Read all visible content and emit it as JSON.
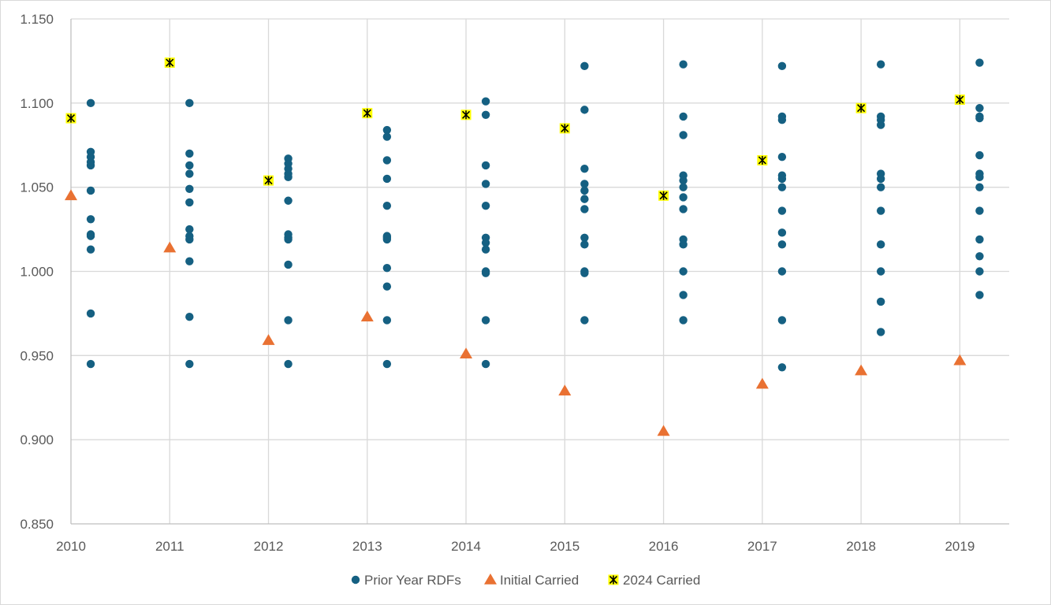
{
  "chart_data": {
    "type": "scatter",
    "title": "",
    "xlabel": "",
    "ylabel": "",
    "xlim": [
      2010,
      2019.5
    ],
    "ylim": [
      0.85,
      1.15
    ],
    "x_ticks": [
      "2010",
      "2011",
      "2012",
      "2013",
      "2014",
      "2015",
      "2016",
      "2017",
      "2018",
      "2019"
    ],
    "y_ticks": [
      "0.850",
      "0.900",
      "0.950",
      "1.000",
      "1.050",
      "1.100",
      "1.150"
    ],
    "grid": "vertical and horizontal major gridlines",
    "legend_position": "bottom",
    "series": [
      {
        "name": "Prior Year RDFs",
        "marker": "circle",
        "color": "#156082",
        "points": [
          {
            "x": 2010.2,
            "y": 1.1
          },
          {
            "x": 2010.2,
            "y": 1.071
          },
          {
            "x": 2010.2,
            "y": 1.068
          },
          {
            "x": 2010.2,
            "y": 1.065
          },
          {
            "x": 2010.2,
            "y": 1.063
          },
          {
            "x": 2010.2,
            "y": 1.048
          },
          {
            "x": 2010.2,
            "y": 1.031
          },
          {
            "x": 2010.2,
            "y": 1.022
          },
          {
            "x": 2010.2,
            "y": 1.021
          },
          {
            "x": 2010.2,
            "y": 1.013
          },
          {
            "x": 2010.2,
            "y": 0.975
          },
          {
            "x": 2010.2,
            "y": 0.945
          },
          {
            "x": 2011.2,
            "y": 1.1
          },
          {
            "x": 2011.2,
            "y": 1.07
          },
          {
            "x": 2011.2,
            "y": 1.063
          },
          {
            "x": 2011.2,
            "y": 1.058
          },
          {
            "x": 2011.2,
            "y": 1.049
          },
          {
            "x": 2011.2,
            "y": 1.041
          },
          {
            "x": 2011.2,
            "y": 1.025
          },
          {
            "x": 2011.2,
            "y": 1.021
          },
          {
            "x": 2011.2,
            "y": 1.019
          },
          {
            "x": 2011.2,
            "y": 1.006
          },
          {
            "x": 2011.2,
            "y": 0.973
          },
          {
            "x": 2011.2,
            "y": 0.945
          },
          {
            "x": 2012.2,
            "y": 1.067
          },
          {
            "x": 2012.2,
            "y": 1.064
          },
          {
            "x": 2012.2,
            "y": 1.061
          },
          {
            "x": 2012.2,
            "y": 1.058
          },
          {
            "x": 2012.2,
            "y": 1.056
          },
          {
            "x": 2012.2,
            "y": 1.042
          },
          {
            "x": 2012.2,
            "y": 1.022
          },
          {
            "x": 2012.2,
            "y": 1.02
          },
          {
            "x": 2012.2,
            "y": 1.019
          },
          {
            "x": 2012.2,
            "y": 1.004
          },
          {
            "x": 2012.2,
            "y": 0.971
          },
          {
            "x": 2012.2,
            "y": 0.945
          },
          {
            "x": 2013.2,
            "y": 1.084
          },
          {
            "x": 2013.2,
            "y": 1.08
          },
          {
            "x": 2013.2,
            "y": 1.066
          },
          {
            "x": 2013.2,
            "y": 1.055
          },
          {
            "x": 2013.2,
            "y": 1.039
          },
          {
            "x": 2013.2,
            "y": 1.021
          },
          {
            "x": 2013.2,
            "y": 1.02
          },
          {
            "x": 2013.2,
            "y": 1.019
          },
          {
            "x": 2013.2,
            "y": 1.002
          },
          {
            "x": 2013.2,
            "y": 0.991
          },
          {
            "x": 2013.2,
            "y": 0.971
          },
          {
            "x": 2013.2,
            "y": 0.945
          },
          {
            "x": 2014.2,
            "y": 1.101
          },
          {
            "x": 2014.2,
            "y": 1.093
          },
          {
            "x": 2014.2,
            "y": 1.063
          },
          {
            "x": 2014.2,
            "y": 1.052
          },
          {
            "x": 2014.2,
            "y": 1.039
          },
          {
            "x": 2014.2,
            "y": 1.02
          },
          {
            "x": 2014.2,
            "y": 1.017
          },
          {
            "x": 2014.2,
            "y": 1.013
          },
          {
            "x": 2014.2,
            "y": 1.0
          },
          {
            "x": 2014.2,
            "y": 0.999
          },
          {
            "x": 2014.2,
            "y": 0.971
          },
          {
            "x": 2014.2,
            "y": 0.945
          },
          {
            "x": 2015.2,
            "y": 1.122
          },
          {
            "x": 2015.2,
            "y": 1.096
          },
          {
            "x": 2015.2,
            "y": 1.061
          },
          {
            "x": 2015.2,
            "y": 1.052
          },
          {
            "x": 2015.2,
            "y": 1.048
          },
          {
            "x": 2015.2,
            "y": 1.043
          },
          {
            "x": 2015.2,
            "y": 1.037
          },
          {
            "x": 2015.2,
            "y": 1.02
          },
          {
            "x": 2015.2,
            "y": 1.016
          },
          {
            "x": 2015.2,
            "y": 1.0
          },
          {
            "x": 2015.2,
            "y": 0.999
          },
          {
            "x": 2015.2,
            "y": 0.971
          },
          {
            "x": 2016.2,
            "y": 1.123
          },
          {
            "x": 2016.2,
            "y": 1.092
          },
          {
            "x": 2016.2,
            "y": 1.081
          },
          {
            "x": 2016.2,
            "y": 1.057
          },
          {
            "x": 2016.2,
            "y": 1.054
          },
          {
            "x": 2016.2,
            "y": 1.05
          },
          {
            "x": 2016.2,
            "y": 1.044
          },
          {
            "x": 2016.2,
            "y": 1.037
          },
          {
            "x": 2016.2,
            "y": 1.019
          },
          {
            "x": 2016.2,
            "y": 1.016
          },
          {
            "x": 2016.2,
            "y": 1.0
          },
          {
            "x": 2016.2,
            "y": 0.986
          },
          {
            "x": 2016.2,
            "y": 0.971
          },
          {
            "x": 2017.2,
            "y": 1.122
          },
          {
            "x": 2017.2,
            "y": 1.092
          },
          {
            "x": 2017.2,
            "y": 1.09
          },
          {
            "x": 2017.2,
            "y": 1.068
          },
          {
            "x": 2017.2,
            "y": 1.057
          },
          {
            "x": 2017.2,
            "y": 1.055
          },
          {
            "x": 2017.2,
            "y": 1.05
          },
          {
            "x": 2017.2,
            "y": 1.036
          },
          {
            "x": 2017.2,
            "y": 1.023
          },
          {
            "x": 2017.2,
            "y": 1.016
          },
          {
            "x": 2017.2,
            "y": 1.0
          },
          {
            "x": 2017.2,
            "y": 0.971
          },
          {
            "x": 2017.2,
            "y": 0.943
          },
          {
            "x": 2018.2,
            "y": 1.123
          },
          {
            "x": 2018.2,
            "y": 1.092
          },
          {
            "x": 2018.2,
            "y": 1.09
          },
          {
            "x": 2018.2,
            "y": 1.087
          },
          {
            "x": 2018.2,
            "y": 1.058
          },
          {
            "x": 2018.2,
            "y": 1.055
          },
          {
            "x": 2018.2,
            "y": 1.05
          },
          {
            "x": 2018.2,
            "y": 1.036
          },
          {
            "x": 2018.2,
            "y": 1.016
          },
          {
            "x": 2018.2,
            "y": 1.0
          },
          {
            "x": 2018.2,
            "y": 0.982
          },
          {
            "x": 2018.2,
            "y": 0.964
          },
          {
            "x": 2019.2,
            "y": 1.124
          },
          {
            "x": 2019.2,
            "y": 1.097
          },
          {
            "x": 2019.2,
            "y": 1.092
          },
          {
            "x": 2019.2,
            "y": 1.091
          },
          {
            "x": 2019.2,
            "y": 1.069
          },
          {
            "x": 2019.2,
            "y": 1.058
          },
          {
            "x": 2019.2,
            "y": 1.056
          },
          {
            "x": 2019.2,
            "y": 1.05
          },
          {
            "x": 2019.2,
            "y": 1.036
          },
          {
            "x": 2019.2,
            "y": 1.019
          },
          {
            "x": 2019.2,
            "y": 1.009
          },
          {
            "x": 2019.2,
            "y": 1.0
          },
          {
            "x": 2019.2,
            "y": 0.986
          }
        ]
      },
      {
        "name": "Initial Carried",
        "marker": "triangle",
        "color": "#E97132",
        "points": [
          {
            "x": 2010,
            "y": 1.045
          },
          {
            "x": 2011,
            "y": 1.014
          },
          {
            "x": 2012,
            "y": 0.959
          },
          {
            "x": 2013,
            "y": 0.973
          },
          {
            "x": 2014,
            "y": 0.951
          },
          {
            "x": 2015,
            "y": 0.929
          },
          {
            "x": 2016,
            "y": 0.905
          },
          {
            "x": 2017,
            "y": 0.933
          },
          {
            "x": 2018,
            "y": 0.941
          },
          {
            "x": 2019,
            "y": 0.947
          }
        ]
      },
      {
        "name": "2024 Carried",
        "marker": "star-square",
        "color": "#FFFF00",
        "points": [
          {
            "x": 2010,
            "y": 1.091
          },
          {
            "x": 2011,
            "y": 1.124
          },
          {
            "x": 2012,
            "y": 1.054
          },
          {
            "x": 2013,
            "y": 1.094
          },
          {
            "x": 2014,
            "y": 1.093
          },
          {
            "x": 2015,
            "y": 1.085
          },
          {
            "x": 2016,
            "y": 1.045
          },
          {
            "x": 2017,
            "y": 1.066
          },
          {
            "x": 2018,
            "y": 1.097
          },
          {
            "x": 2019,
            "y": 1.102
          }
        ]
      }
    ]
  }
}
